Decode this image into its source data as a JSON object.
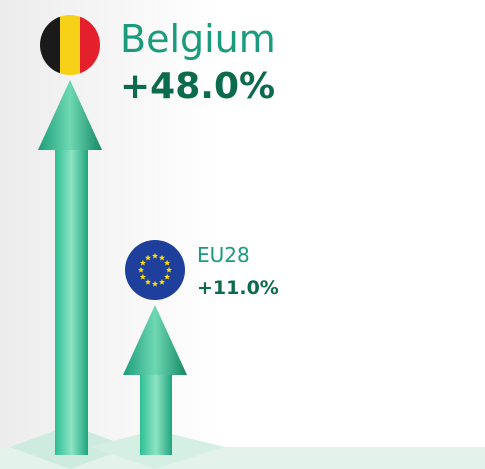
{
  "items": [
    {
      "label": "Belgium",
      "change": "+48.0%"
    },
    {
      "label": "EU28",
      "change": "+11.0%"
    }
  ]
}
